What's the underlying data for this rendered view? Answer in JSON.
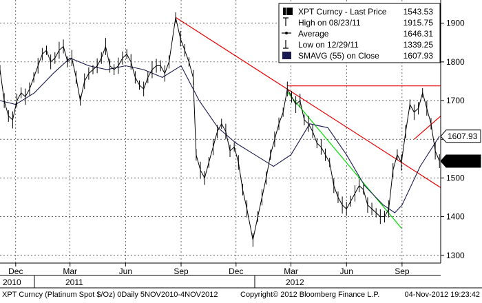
{
  "legend": {
    "rows": [
      {
        "label": "XPT Curncy - Last Price",
        "value": "1543.53",
        "icon": "filled-square-icon"
      },
      {
        "label": "High on 08/23/11",
        "value": "1915.75",
        "icon": "high-marker-icon"
      },
      {
        "label": "Average",
        "value": "1646.31",
        "icon": "average-line-icon"
      },
      {
        "label": "Low on 12/29/11",
        "value": "1339.25",
        "icon": "low-marker-icon"
      },
      {
        "label": "SMAVG (55) on Close",
        "value": "1607.93",
        "icon": "navy-square-icon"
      }
    ]
  },
  "footer": {
    "left": "XPT Curncy (Platinum Spot  $/Oz) 0Daily 5NOV2010-4NOV2012",
    "center": "Copyright© 2012 Bloomberg Finance L.P.",
    "right": "04-Nov-2012 19:23:42"
  },
  "chart_data": {
    "type": "line",
    "x_range": [
      "2010-11-05",
      "2012-11-04"
    ],
    "ylim": [
      1280,
      1960
    ],
    "y_ticks": [
      1300,
      1400,
      1500,
      1600,
      1700,
      1800,
      1900
    ],
    "grid": true,
    "legend_position": "top-right",
    "month_ticks": [
      {
        "label": "Dec",
        "date": "2010-12-01"
      },
      {
        "label": "Mar",
        "date": "2011-03-01"
      },
      {
        "label": "Jun",
        "date": "2011-06-01"
      },
      {
        "label": "Sep",
        "date": "2011-09-01"
      },
      {
        "label": "Dec",
        "date": "2011-12-01"
      },
      {
        "label": "Mar",
        "date": "2012-03-01"
      },
      {
        "label": "Jun",
        "date": "2012-06-01"
      },
      {
        "label": "Sep",
        "date": "2012-09-01"
      }
    ],
    "year_ticks": [
      {
        "label": "2010",
        "date": "2010-11-05"
      },
      {
        "label": "2011",
        "date": "2011-01-01"
      },
      {
        "label": "2012",
        "date": "2012-01-01"
      }
    ],
    "value_badges": [
      {
        "value": "1607.93",
        "y": 1607.93,
        "style": "outline"
      },
      {
        "value": "1543.53",
        "y": 1543.53,
        "style": "filled"
      }
    ],
    "series": [
      {
        "name": "XPT Curncy - Last Price",
        "color": "#000000",
        "points": [
          [
            "2010-11-05",
            1780
          ],
          [
            "2010-11-12",
            1700
          ],
          [
            "2010-11-19",
            1660
          ],
          [
            "2010-11-26",
            1650
          ],
          [
            "2010-12-03",
            1700
          ],
          [
            "2010-12-10",
            1720
          ],
          [
            "2010-12-17",
            1710
          ],
          [
            "2010-12-24",
            1730
          ],
          [
            "2010-12-31",
            1760
          ],
          [
            "2011-01-07",
            1790
          ],
          [
            "2011-01-14",
            1820
          ],
          [
            "2011-01-21",
            1830
          ],
          [
            "2011-01-28",
            1800
          ],
          [
            "2011-02-04",
            1810
          ],
          [
            "2011-02-11",
            1830
          ],
          [
            "2011-02-18",
            1840
          ],
          [
            "2011-02-25",
            1800
          ],
          [
            "2011-03-04",
            1810
          ],
          [
            "2011-03-11",
            1760
          ],
          [
            "2011-03-18",
            1700
          ],
          [
            "2011-03-25",
            1750
          ],
          [
            "2011-04-01",
            1770
          ],
          [
            "2011-04-08",
            1780
          ],
          [
            "2011-04-15",
            1790
          ],
          [
            "2011-04-22",
            1810
          ],
          [
            "2011-04-29",
            1840
          ],
          [
            "2011-05-06",
            1790
          ],
          [
            "2011-05-13",
            1780
          ],
          [
            "2011-05-20",
            1790
          ],
          [
            "2011-05-27",
            1810
          ],
          [
            "2011-06-03",
            1820
          ],
          [
            "2011-06-10",
            1800
          ],
          [
            "2011-06-17",
            1760
          ],
          [
            "2011-06-24",
            1740
          ],
          [
            "2011-07-01",
            1730
          ],
          [
            "2011-07-08",
            1760
          ],
          [
            "2011-07-15",
            1780
          ],
          [
            "2011-07-22",
            1790
          ],
          [
            "2011-07-29",
            1790
          ],
          [
            "2011-08-05",
            1770
          ],
          [
            "2011-08-12",
            1800
          ],
          [
            "2011-08-23",
            1915
          ],
          [
            "2011-08-31",
            1860
          ],
          [
            "2011-09-07",
            1830
          ],
          [
            "2011-09-14",
            1800
          ],
          [
            "2011-09-21",
            1760
          ],
          [
            "2011-09-26",
            1560
          ],
          [
            "2011-10-03",
            1520
          ],
          [
            "2011-10-10",
            1500
          ],
          [
            "2011-10-17",
            1540
          ],
          [
            "2011-10-24",
            1580
          ],
          [
            "2011-10-31",
            1620
          ],
          [
            "2011-11-07",
            1640
          ],
          [
            "2011-11-14",
            1620
          ],
          [
            "2011-11-21",
            1570
          ],
          [
            "2011-11-28",
            1580
          ],
          [
            "2011-12-05",
            1540
          ],
          [
            "2011-12-12",
            1470
          ],
          [
            "2011-12-19",
            1420
          ],
          [
            "2011-12-29",
            1340
          ],
          [
            "2012-01-06",
            1400
          ],
          [
            "2012-01-13",
            1450
          ],
          [
            "2012-01-20",
            1500
          ],
          [
            "2012-01-27",
            1560
          ],
          [
            "2012-02-03",
            1600
          ],
          [
            "2012-02-10",
            1640
          ],
          [
            "2012-02-17",
            1670
          ],
          [
            "2012-02-24",
            1730
          ],
          [
            "2012-03-02",
            1710
          ],
          [
            "2012-03-09",
            1690
          ],
          [
            "2012-03-16",
            1700
          ],
          [
            "2012-03-23",
            1650
          ],
          [
            "2012-03-30",
            1640
          ],
          [
            "2012-04-06",
            1620
          ],
          [
            "2012-04-13",
            1590
          ],
          [
            "2012-04-20",
            1580
          ],
          [
            "2012-04-27",
            1560
          ],
          [
            "2012-05-04",
            1540
          ],
          [
            "2012-05-11",
            1480
          ],
          [
            "2012-05-18",
            1450
          ],
          [
            "2012-05-25",
            1430
          ],
          [
            "2012-06-01",
            1420
          ],
          [
            "2012-06-08",
            1440
          ],
          [
            "2012-06-15",
            1460
          ],
          [
            "2012-06-22",
            1480
          ],
          [
            "2012-06-29",
            1470
          ],
          [
            "2012-07-06",
            1430
          ],
          [
            "2012-07-13",
            1420
          ],
          [
            "2012-07-20",
            1410
          ],
          [
            "2012-07-27",
            1400
          ],
          [
            "2012-08-03",
            1400
          ],
          [
            "2012-08-10",
            1420
          ],
          [
            "2012-08-17",
            1520
          ],
          [
            "2012-08-24",
            1560
          ],
          [
            "2012-08-31",
            1540
          ],
          [
            "2012-09-07",
            1620
          ],
          [
            "2012-09-14",
            1690
          ],
          [
            "2012-09-21",
            1670
          ],
          [
            "2012-09-28",
            1680
          ],
          [
            "2012-10-05",
            1720
          ],
          [
            "2012-10-12",
            1680
          ],
          [
            "2012-10-19",
            1640
          ],
          [
            "2012-10-26",
            1570
          ],
          [
            "2012-11-02",
            1543.53
          ]
        ]
      },
      {
        "name": "SMAVG (55) on Close",
        "color": "#1a1a50",
        "points": [
          [
            "2010-11-05",
            1700
          ],
          [
            "2010-12-01",
            1690
          ],
          [
            "2011-01-01",
            1720
          ],
          [
            "2011-02-01",
            1770
          ],
          [
            "2011-03-01",
            1810
          ],
          [
            "2011-04-01",
            1790
          ],
          [
            "2011-05-01",
            1780
          ],
          [
            "2011-06-01",
            1790
          ],
          [
            "2011-07-01",
            1780
          ],
          [
            "2011-08-01",
            1760
          ],
          [
            "2011-09-01",
            1790
          ],
          [
            "2011-10-01",
            1700
          ],
          [
            "2011-11-01",
            1630
          ],
          [
            "2011-12-01",
            1590
          ],
          [
            "2012-01-01",
            1560
          ],
          [
            "2012-02-01",
            1530
          ],
          [
            "2012-03-01",
            1560
          ],
          [
            "2012-04-01",
            1640
          ],
          [
            "2012-05-01",
            1630
          ],
          [
            "2012-06-01",
            1560
          ],
          [
            "2012-07-01",
            1480
          ],
          [
            "2012-08-01",
            1430
          ],
          [
            "2012-08-20",
            1410
          ],
          [
            "2012-09-01",
            1430
          ],
          [
            "2012-10-01",
            1530
          ],
          [
            "2012-11-02",
            1607.93
          ]
        ]
      }
    ],
    "trendlines": [
      {
        "color": "#e60000",
        "from": [
          "2011-08-23",
          1915
        ],
        "to": [
          "2012-11-04",
          1475
        ]
      },
      {
        "color": "#e60000",
        "from": [
          "2012-02-24",
          1738
        ],
        "to": [
          "2012-11-04",
          1738
        ]
      },
      {
        "color": "#e60000",
        "from": [
          "2012-09-21",
          1600
        ],
        "to": [
          "2012-11-04",
          1660
        ]
      },
      {
        "color": "#00dd00",
        "from": [
          "2012-02-24",
          1722
        ],
        "to": [
          "2012-08-31",
          1370
        ]
      }
    ]
  }
}
